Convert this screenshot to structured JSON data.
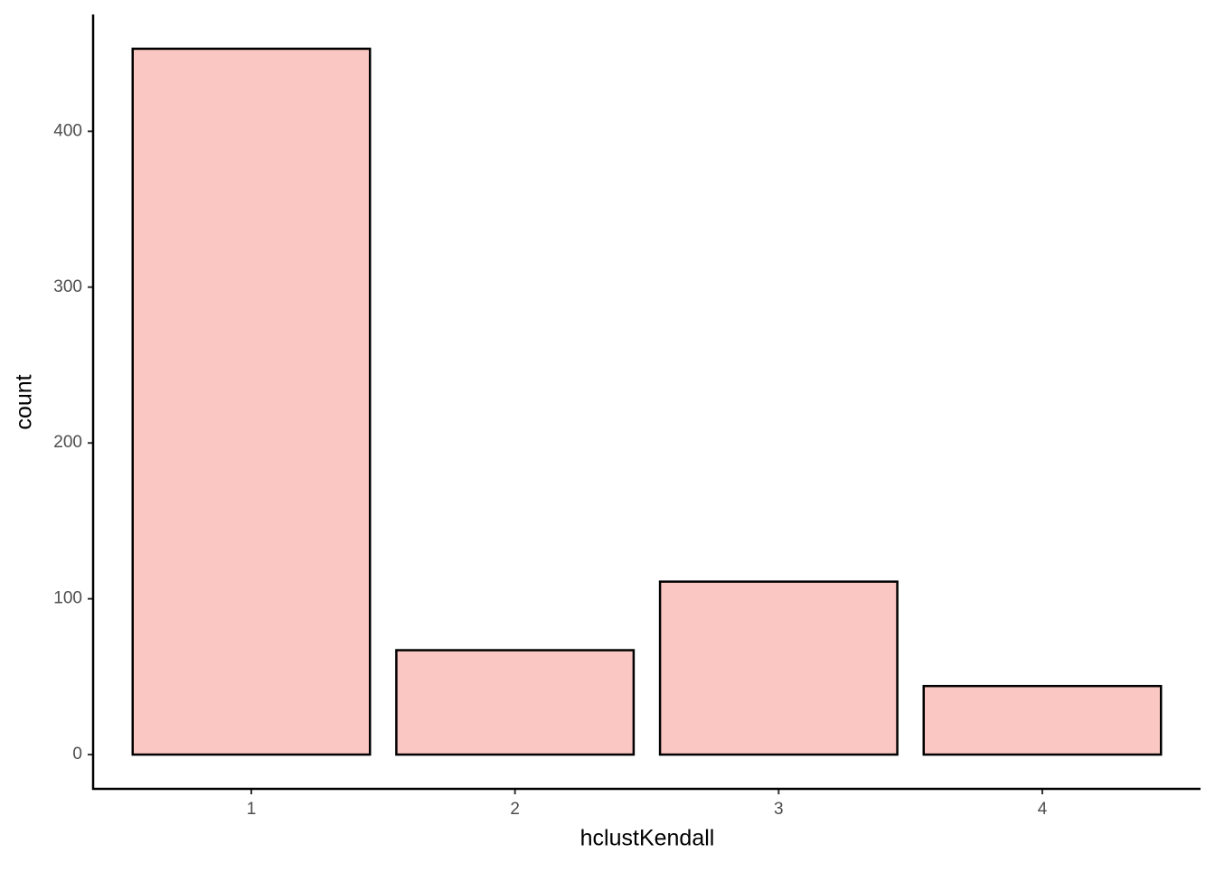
{
  "chart_data": {
    "type": "bar",
    "x_label": "hclustKendall",
    "y_label": "count",
    "categories": [
      "1",
      "2",
      "3",
      "4"
    ],
    "values": [
      453,
      67,
      111,
      44
    ],
    "color": "#fbc7c3",
    "edge_color": "#000000",
    "ylim": [
      -22,
      475
    ],
    "yticks": [
      0,
      100,
      200,
      300,
      400
    ],
    "grid": false
  }
}
